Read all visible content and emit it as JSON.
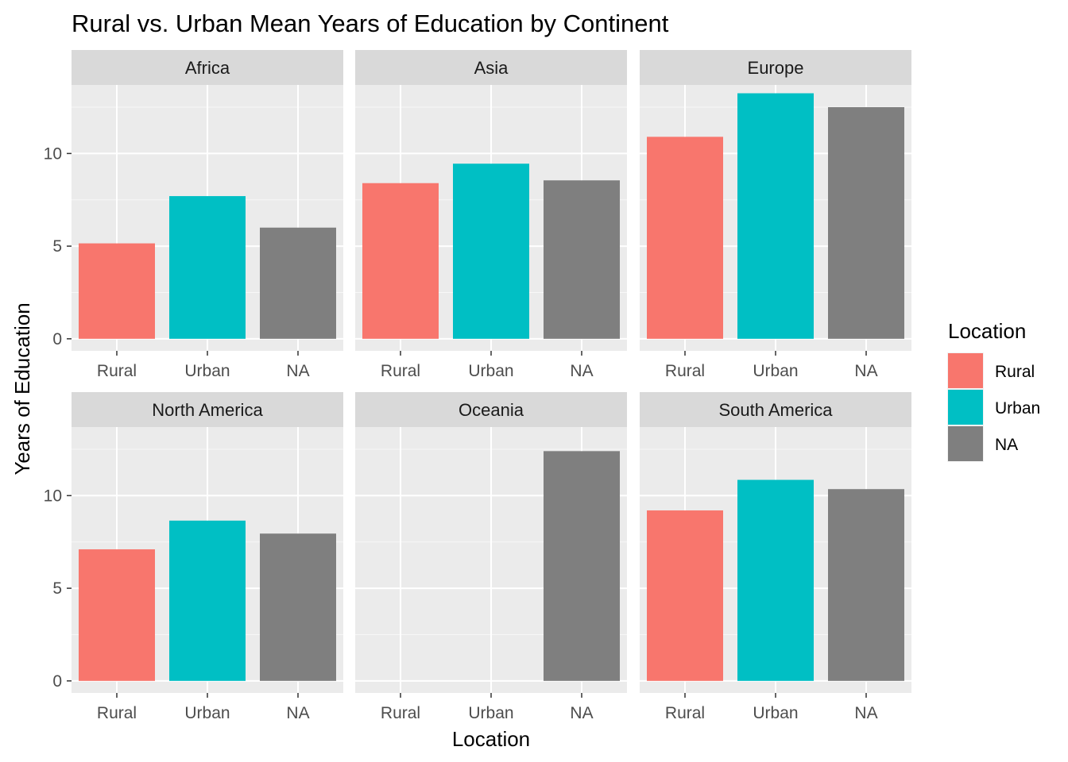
{
  "chart_data": {
    "type": "bar",
    "title": "Rural vs. Urban Mean Years of Education by Continent",
    "xlabel": "Location",
    "ylabel": "Years of Education",
    "categories": [
      "Rural",
      "Urban",
      "NA"
    ],
    "ylim": [
      -0.65,
      13.7
    ],
    "yticks": [
      0,
      5,
      10
    ],
    "grid": true,
    "facet_layout": "2 rows x 3 columns",
    "legend": {
      "title": "Location",
      "placement": "right",
      "entries": [
        {
          "label": "Rural",
          "color": "#F8766D"
        },
        {
          "label": "Urban",
          "color": "#00BFC4"
        },
        {
          "label": "NA",
          "color": "#7F7F7F"
        }
      ]
    },
    "panels": [
      {
        "name": "Africa",
        "values": [
          5.15,
          7.7,
          6.0
        ]
      },
      {
        "name": "Asia",
        "values": [
          8.4,
          9.45,
          8.55
        ]
      },
      {
        "name": "Europe",
        "values": [
          10.9,
          13.25,
          12.5
        ]
      },
      {
        "name": "North America",
        "values": [
          7.1,
          8.65,
          7.95
        ]
      },
      {
        "name": "Oceania",
        "values": [
          null,
          null,
          12.4
        ]
      },
      {
        "name": "South America",
        "values": [
          9.2,
          10.85,
          10.35
        ]
      }
    ]
  },
  "colors": {
    "panel_background": "#EBEBEB",
    "strip_background": "#D9D9D9",
    "grid_major": "#FFFFFF",
    "tick": "#333333"
  }
}
